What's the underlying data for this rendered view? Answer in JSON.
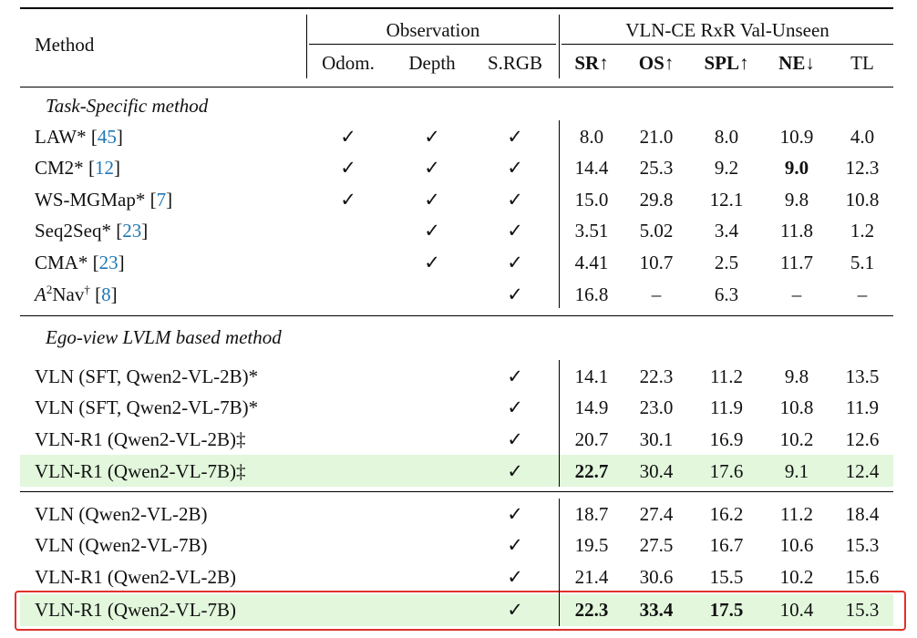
{
  "header": {
    "method": "Method",
    "observation": "Observation",
    "benchmark": "VLN-CE RxR Val-Unseen",
    "obs_cols": [
      "Odom.",
      "Depth",
      "S.RGB"
    ],
    "metric_cols": [
      "SR↑",
      "OS↑",
      "SPL↑",
      "NE↓",
      "TL"
    ]
  },
  "section_labels": [
    "Task-Specific method",
    "Ego-view LVLM based method"
  ],
  "check_mark": "✓",
  "rows_task_specific": [
    {
      "name": "LAW*",
      "ref": "45",
      "odom": "✓",
      "depth": "✓",
      "srgb": "✓",
      "sr": "8.0",
      "os": "21.0",
      "spl": "8.0",
      "ne": "10.9",
      "tl": "4.0"
    },
    {
      "name": "CM2*",
      "ref": "12",
      "odom": "✓",
      "depth": "✓",
      "srgb": "✓",
      "sr": "14.4",
      "os": "25.3",
      "spl": "9.2",
      "ne": "9.0",
      "tl": "12.3"
    },
    {
      "name": "WS-MGMap*",
      "ref": "7",
      "odom": "✓",
      "depth": "✓",
      "srgb": "✓",
      "sr": "15.0",
      "os": "29.8",
      "spl": "12.1",
      "ne": "9.8",
      "tl": "10.8"
    },
    {
      "name": "Seq2Seq*",
      "ref": "23",
      "odom": "",
      "depth": "✓",
      "srgb": "✓",
      "sr": "3.51",
      "os": "5.02",
      "spl": "3.4",
      "ne": "11.8",
      "tl": "1.2"
    },
    {
      "name": "CMA*",
      "ref": "23",
      "odom": "",
      "depth": "✓",
      "srgb": "✓",
      "sr": "4.41",
      "os": "10.7",
      "spl": "2.5",
      "ne": "11.7",
      "tl": "5.1"
    },
    {
      "name_a": "A",
      "name_sup": "2",
      "name_b": "Nav",
      "name_dag": "†",
      "ref": "8",
      "odom": "",
      "depth": "",
      "srgb": "✓",
      "sr": "16.8",
      "os": "–",
      "spl": "6.3",
      "ne": "–",
      "tl": "–"
    }
  ],
  "rows_ego_a": [
    {
      "name": "VLN (SFT, Qwen2-VL-2B)*",
      "srgb": "✓",
      "sr": "14.1",
      "os": "22.3",
      "spl": "11.2",
      "ne": "9.8",
      "tl": "13.5"
    },
    {
      "name": "VLN (SFT, Qwen2-VL-7B)*",
      "srgb": "✓",
      "sr": "14.9",
      "os": "23.0",
      "spl": "11.9",
      "ne": "10.8",
      "tl": "11.9"
    },
    {
      "name": "VLN-R1 (Qwen2-VL-2B)‡",
      "srgb": "✓",
      "sr": "20.7",
      "os": "30.1",
      "spl": "16.9",
      "ne": "10.2",
      "tl": "12.6"
    },
    {
      "name": "VLN-R1 (Qwen2-VL-7B)‡",
      "srgb": "✓",
      "sr": "22.7",
      "os": "30.4",
      "spl": "17.6",
      "ne": "9.1",
      "tl": "12.4"
    }
  ],
  "rows_ego_b": [
    {
      "name": "VLN (Qwen2-VL-2B)",
      "srgb": "✓",
      "sr": "18.7",
      "os": "27.4",
      "spl": "16.2",
      "ne": "11.2",
      "tl": "18.4"
    },
    {
      "name": "VLN (Qwen2-VL-7B)",
      "srgb": "✓",
      "sr": "19.5",
      "os": "27.5",
      "spl": "16.7",
      "ne": "10.6",
      "tl": "15.3"
    },
    {
      "name": "VLN-R1 (Qwen2-VL-2B)",
      "srgb": "✓",
      "sr": "21.4",
      "os": "30.6",
      "spl": "15.5",
      "ne": "10.2",
      "tl": "15.6"
    },
    {
      "name": "VLN-R1 (Qwen2-VL-7B)",
      "srgb": "✓",
      "sr": "22.3",
      "os": "33.4",
      "spl": "17.5",
      "ne": "10.4",
      "tl": "15.3"
    }
  ],
  "colors": {
    "highlight_row": "#e2f7dc",
    "red_box": "#e0312b",
    "citation": "#1f77b4"
  }
}
